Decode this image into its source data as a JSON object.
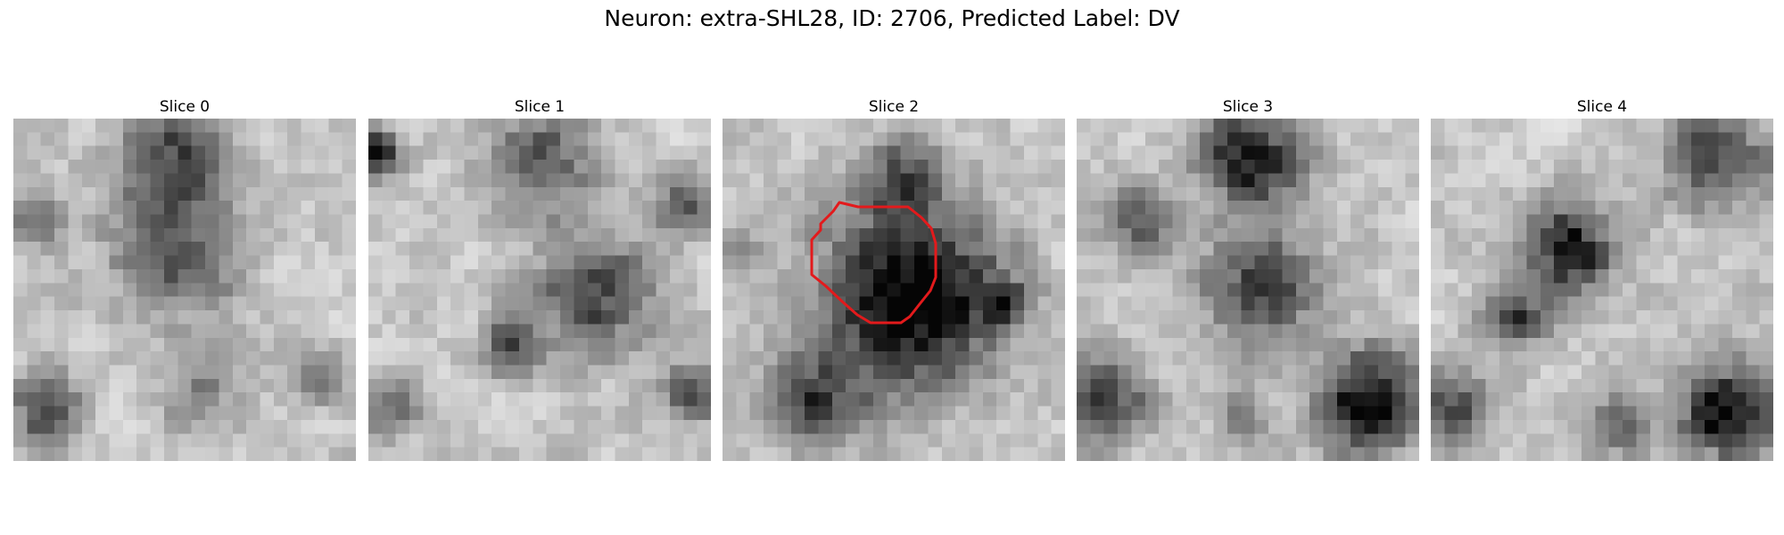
{
  "figure": {
    "title": "Neuron: extra-SHL28, ID: 2706, Predicted Label: DV",
    "outline_color": "#e31a1c",
    "slices": [
      {
        "title": "Slice 0",
        "seed": 11,
        "blobs": [
          [
            0.47,
            0.12,
            0.11,
            0.55
          ],
          [
            0.47,
            0.4,
            0.14,
            0.45
          ],
          [
            0.05,
            0.3,
            0.06,
            0.45
          ],
          [
            0.1,
            0.85,
            0.08,
            0.55
          ],
          [
            0.9,
            0.75,
            0.06,
            0.35
          ],
          [
            0.55,
            0.82,
            0.08,
            0.3
          ]
        ]
      },
      {
        "title": "Slice 1",
        "seed": 29,
        "blobs": [
          [
            0.02,
            0.1,
            0.05,
            0.7
          ],
          [
            0.5,
            0.12,
            0.12,
            0.45
          ],
          [
            0.92,
            0.25,
            0.06,
            0.55
          ],
          [
            0.66,
            0.52,
            0.13,
            0.5
          ],
          [
            0.42,
            0.66,
            0.06,
            0.55
          ],
          [
            0.08,
            0.85,
            0.06,
            0.4
          ],
          [
            0.95,
            0.8,
            0.06,
            0.55
          ]
        ]
      },
      {
        "title": "Slice 2",
        "seed": 47,
        "has_outline": true,
        "blobs": [
          [
            0.55,
            0.52,
            0.19,
            0.92
          ],
          [
            0.52,
            0.16,
            0.09,
            0.4
          ],
          [
            0.82,
            0.55,
            0.05,
            0.5
          ],
          [
            0.28,
            0.82,
            0.1,
            0.55
          ],
          [
            0.05,
            0.4,
            0.04,
            0.3
          ]
        ]
      },
      {
        "title": "Slice 3",
        "seed": 71,
        "blobs": [
          [
            0.51,
            0.12,
            0.11,
            0.75
          ],
          [
            0.53,
            0.5,
            0.12,
            0.6
          ],
          [
            0.17,
            0.3,
            0.08,
            0.45
          ],
          [
            0.08,
            0.82,
            0.1,
            0.6
          ],
          [
            0.85,
            0.83,
            0.11,
            0.85
          ],
          [
            0.48,
            0.86,
            0.05,
            0.35
          ]
        ]
      },
      {
        "title": "Slice 4",
        "seed": 93,
        "blobs": [
          [
            0.4,
            0.38,
            0.1,
            0.72
          ],
          [
            0.25,
            0.58,
            0.07,
            0.55
          ],
          [
            0.83,
            0.1,
            0.12,
            0.5
          ],
          [
            0.87,
            0.86,
            0.1,
            0.85
          ],
          [
            0.05,
            0.85,
            0.08,
            0.55
          ],
          [
            0.55,
            0.88,
            0.07,
            0.4
          ]
        ]
      }
    ]
  }
}
